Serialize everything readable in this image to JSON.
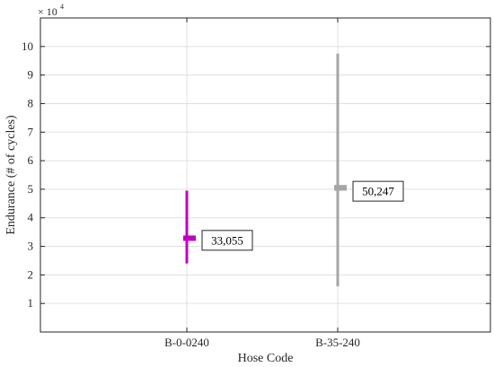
{
  "chart_data": {
    "type": "box",
    "title": "",
    "xlabel": "Hose Code",
    "ylabel": "Endurance (# of cycles)",
    "y_exponent_label": {
      "base": "× 10",
      "power": "4"
    },
    "y_scale_factor": 10000,
    "ylim": [
      0,
      110000
    ],
    "yticks": [
      10000,
      20000,
      30000,
      40000,
      50000,
      60000,
      70000,
      80000,
      90000,
      100000
    ],
    "ytick_labels": [
      "1",
      "2",
      "3",
      "4",
      "5",
      "6",
      "7",
      "8",
      "9",
      "10"
    ],
    "grid": true,
    "categories": [
      "B-0-0240",
      "B-35-240"
    ],
    "series": [
      {
        "category": "B-0-0240",
        "min": 24000,
        "q1": 32500,
        "median": 33055,
        "q3": 33800,
        "max": 49500,
        "color": "#c000c0",
        "label": "33,055"
      },
      {
        "category": "B-35-240",
        "min": 16000,
        "q1": 49500,
        "median": 50247,
        "q3": 51500,
        "max": 97500,
        "color": "#a6a6a6",
        "label": "50,247"
      }
    ]
  }
}
